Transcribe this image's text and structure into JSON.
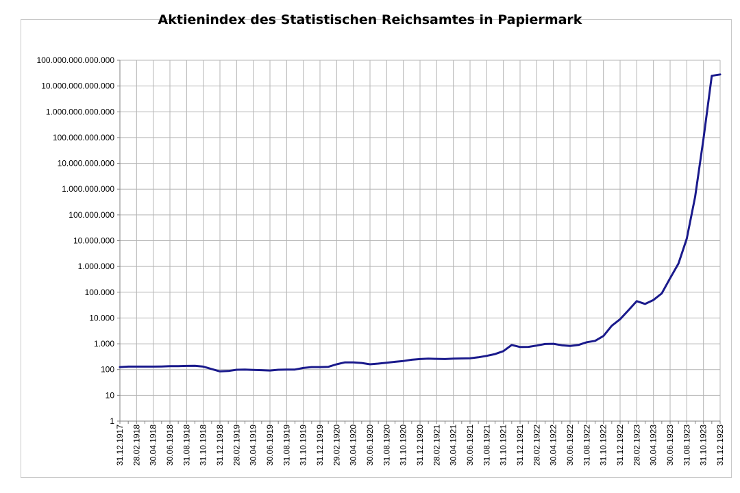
{
  "chart_data": {
    "type": "line",
    "title": "Aktienindex des Statistischen Reichsamtes in Papiermark",
    "xlabel": "",
    "ylabel": "",
    "y_scale": "log",
    "ylim": [
      1,
      100000000000000
    ],
    "grid": true,
    "legend": "none",
    "line_color": "#1a1a8c",
    "y_tick_labels": [
      "1",
      "10",
      "100",
      "1.000",
      "10.000",
      "100.000",
      "1.000.000",
      "10.000.000",
      "100.000.000",
      "1.000.000.000",
      "10.000.000.000",
      "100.000.000.000",
      "1.000.000.000.000",
      "10.000.000.000.000",
      "100.000.000.000.000"
    ],
    "x_tick_labels": [
      "31.12.1917",
      "28.02.1918",
      "30.04.1918",
      "30.06.1918",
      "31.08.1918",
      "31.10.1918",
      "31.12.1918",
      "28.02.1919",
      "30.04.1919",
      "30.06.1919",
      "31.08.1919",
      "31.10.1919",
      "31.12.1919",
      "29.02.1920",
      "30.04.1920",
      "30.06.1920",
      "31.08.1920",
      "31.10.1920",
      "31.12.1920",
      "28.02.1921",
      "30.04.1921",
      "30.06.1921",
      "31.08.1921",
      "31.10.1921",
      "31.12.1921",
      "28.02.1922",
      "30.04.1922",
      "30.06.1922",
      "31.08.1922",
      "31.10.1922",
      "31.12.1922",
      "28.02.1923",
      "30.04.1923",
      "30.06.1923",
      "31.08.1923",
      "31.10.1923",
      "31.12.1923"
    ],
    "series": [
      {
        "x": [
          "1917-12",
          "1918-01",
          "1918-02",
          "1918-03",
          "1918-04",
          "1918-05",
          "1918-06",
          "1918-07",
          "1918-08",
          "1918-09",
          "1918-10",
          "1918-11",
          "1918-12",
          "1919-01",
          "1919-02",
          "1919-03",
          "1919-04",
          "1919-05",
          "1919-06",
          "1919-07",
          "1919-08",
          "1919-09",
          "1919-10",
          "1919-11",
          "1919-12",
          "1920-01",
          "1920-02",
          "1920-03",
          "1920-04",
          "1920-05",
          "1920-06",
          "1920-07",
          "1920-08",
          "1920-09",
          "1920-10",
          "1920-11",
          "1920-12",
          "1921-01",
          "1921-02",
          "1921-03",
          "1921-04",
          "1921-05",
          "1921-06",
          "1921-07",
          "1921-08",
          "1921-09",
          "1921-10",
          "1921-11",
          "1921-12",
          "1922-01",
          "1922-02",
          "1922-03",
          "1922-04",
          "1922-05",
          "1922-06",
          "1922-07",
          "1922-08",
          "1922-09",
          "1922-10",
          "1922-11",
          "1922-12",
          "1923-01",
          "1923-02",
          "1923-03",
          "1923-04",
          "1923-05",
          "1923-06",
          "1923-07",
          "1923-08",
          "1923-09",
          "1923-10",
          "1923-11",
          "1923-12"
        ],
        "values": [
          125,
          130,
          130,
          130,
          130,
          132,
          135,
          136,
          138,
          140,
          130,
          105,
          85,
          88,
          98,
          100,
          97,
          95,
          92,
          98,
          100,
          100,
          115,
          125,
          125,
          128,
          160,
          190,
          190,
          180,
          160,
          170,
          185,
          200,
          215,
          240,
          255,
          265,
          260,
          255,
          265,
          270,
          275,
          300,
          340,
          400,
          520,
          900,
          750,
          760,
          850,
          980,
          1000,
          880,
          820,
          900,
          1150,
          1300,
          2000,
          5000,
          9000,
          20000,
          45000,
          35000,
          50000,
          90000,
          350000,
          1300000,
          12000000,
          500000000,
          90000000000,
          25000000000000,
          28000000000000
        ]
      }
    ]
  }
}
